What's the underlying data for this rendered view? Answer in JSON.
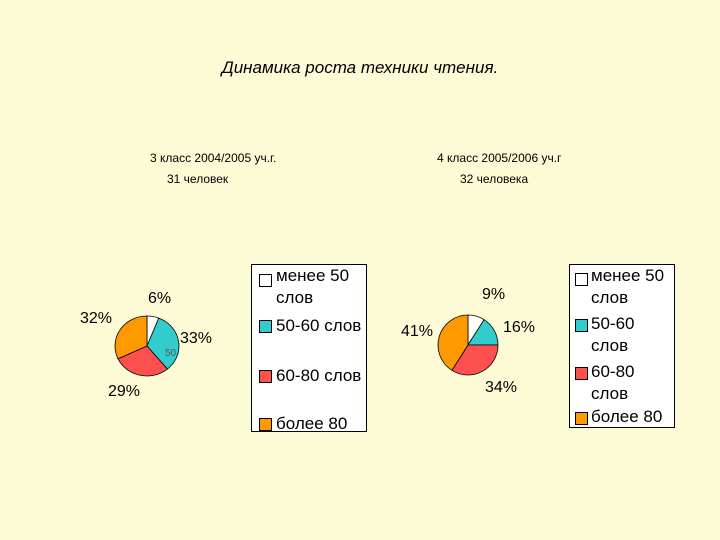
{
  "page": {
    "title": "Динамика роста техники чтения."
  },
  "colors": {
    "background": "#fdfbd6",
    "less_50": "#ffffff",
    "50_60": "#33cccc",
    "60_80": "#ff5050",
    "more_80": "#ff9900"
  },
  "chart_data": [
    {
      "type": "pie",
      "title": "3 класс 2004/2005 уч.г.",
      "subtitle": "31 человек",
      "categories": [
        "менее 50 слов",
        "50-60 слов",
        "60-80 слов",
        "более 80"
      ],
      "values": [
        6,
        33,
        29,
        32
      ],
      "labels": [
        "6%",
        "33%",
        "29%",
        "32%"
      ],
      "stray_label": "50",
      "legend": [
        "менее 50 слов",
        "50-60 слов",
        "60-80 слов",
        "более 80"
      ]
    },
    {
      "type": "pie",
      "title": "4 класс 2005/2006 уч.г",
      "subtitle": "32 человека",
      "categories": [
        "менее 50 слов",
        "50-60 слов",
        "60-80 слов",
        "более 80"
      ],
      "values": [
        9,
        16,
        34,
        41
      ],
      "labels": [
        "9%",
        "16%",
        "34%",
        "41%"
      ],
      "legend": [
        "менее 50 слов",
        "50-60 слов",
        "60-80 слов",
        "более 80"
      ]
    }
  ]
}
